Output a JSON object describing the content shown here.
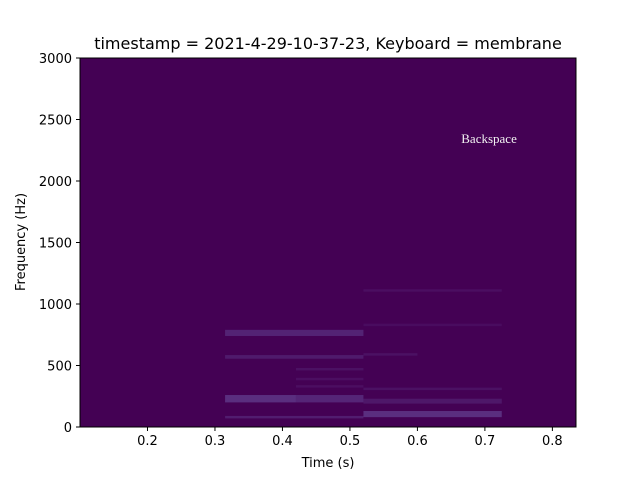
{
  "chart_data": {
    "type": "heatmap",
    "title": "timestamp = 2021-4-29-10-37-23, Keyboard = membrane",
    "xlabel": "Time (s)",
    "ylabel": "Frequency (Hz)",
    "xlim": [
      0.1,
      0.835
    ],
    "ylim": [
      0,
      3000
    ],
    "xticks": [
      0.2,
      0.3,
      0.4,
      0.5,
      0.6,
      0.7,
      0.8
    ],
    "xtick_labels": [
      "0.2",
      "0.3",
      "0.4",
      "0.5",
      "0.6",
      "0.7",
      "0.8"
    ],
    "yticks": [
      0,
      500,
      1000,
      1500,
      2000,
      2500,
      3000
    ],
    "ytick_labels": [
      "0",
      "500",
      "1000",
      "1500",
      "2000",
      "2500",
      "3000"
    ],
    "background_color": "#440154",
    "colormap": "viridis",
    "annotation": {
      "text": "Backspace",
      "x": 0.665,
      "y": 2310
    },
    "bands": [
      {
        "t0": 0.315,
        "t1": 0.52,
        "f0": 740,
        "f1": 790,
        "intensity": 0.12
      },
      {
        "t0": 0.315,
        "t1": 0.52,
        "f0": 555,
        "f1": 585,
        "intensity": 0.09
      },
      {
        "t0": 0.42,
        "t1": 0.52,
        "f0": 460,
        "f1": 480,
        "intensity": 0.06
      },
      {
        "t0": 0.42,
        "t1": 0.52,
        "f0": 380,
        "f1": 400,
        "intensity": 0.05
      },
      {
        "t0": 0.42,
        "t1": 0.52,
        "f0": 320,
        "f1": 340,
        "intensity": 0.05
      },
      {
        "t0": 0.315,
        "t1": 0.42,
        "f0": 200,
        "f1": 260,
        "intensity": 0.16
      },
      {
        "t0": 0.42,
        "t1": 0.52,
        "f0": 200,
        "f1": 260,
        "intensity": 0.13
      },
      {
        "t0": 0.315,
        "t1": 0.52,
        "f0": 70,
        "f1": 90,
        "intensity": 0.1
      },
      {
        "t0": 0.52,
        "t1": 0.725,
        "f0": 1100,
        "f1": 1120,
        "intensity": 0.05
      },
      {
        "t0": 0.52,
        "t1": 0.725,
        "f0": 820,
        "f1": 840,
        "intensity": 0.04
      },
      {
        "t0": 0.52,
        "t1": 0.6,
        "f0": 580,
        "f1": 600,
        "intensity": 0.06
      },
      {
        "t0": 0.52,
        "t1": 0.725,
        "f0": 300,
        "f1": 320,
        "intensity": 0.06
      },
      {
        "t0": 0.52,
        "t1": 0.725,
        "f0": 190,
        "f1": 230,
        "intensity": 0.08
      },
      {
        "t0": 0.52,
        "t1": 0.725,
        "f0": 80,
        "f1": 130,
        "intensity": 0.16
      }
    ]
  }
}
